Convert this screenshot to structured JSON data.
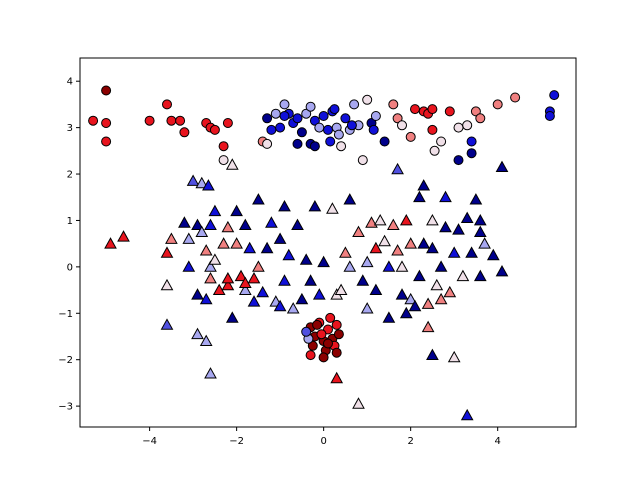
{
  "chart_data": {
    "type": "scatter",
    "title": "",
    "xlabel": "",
    "ylabel": "",
    "xlim": [
      -5.6,
      5.8
    ],
    "ylim": [
      -3.45,
      4.5
    ],
    "x_ticks": [
      -4,
      -2,
      0,
      2,
      4
    ],
    "y_ticks": [
      -3,
      -2,
      -1,
      0,
      1,
      2,
      3,
      4
    ],
    "grid": false,
    "legend": "none",
    "colors": {
      "dark_red": "#8b0000",
      "red": "#e8141e",
      "light_red": "#f08080",
      "pale": "#f0e0e8",
      "light_blue": "#a8a8f0",
      "mid_blue": "#5050e0",
      "blue": "#1010d8",
      "navy": "#00008b"
    },
    "series": [
      {
        "marker": "circle",
        "points": [
          [
            -5.3,
            3.15,
            "red"
          ],
          [
            -5.0,
            3.8,
            "dark_red"
          ],
          [
            -5.0,
            3.1,
            "red"
          ],
          [
            -5.0,
            2.7,
            "red"
          ],
          [
            -4.0,
            3.15,
            "red"
          ],
          [
            -3.6,
            3.5,
            "red"
          ],
          [
            -3.5,
            3.15,
            "red"
          ],
          [
            -3.3,
            3.15,
            "red"
          ],
          [
            -3.2,
            2.9,
            "red"
          ],
          [
            -2.7,
            3.1,
            "red"
          ],
          [
            -2.6,
            3.0,
            "red"
          ],
          [
            -2.5,
            2.95,
            "red"
          ],
          [
            -2.2,
            3.1,
            "red"
          ],
          [
            -2.3,
            2.6,
            "red"
          ],
          [
            -2.3,
            2.3,
            "pale"
          ],
          [
            -1.4,
            2.7,
            "light_red"
          ],
          [
            -1.3,
            2.65,
            "pale"
          ],
          [
            -1.3,
            3.2,
            "navy"
          ],
          [
            -1.2,
            2.95,
            "blue"
          ],
          [
            -1.1,
            3.3,
            "light_blue"
          ],
          [
            -1.0,
            3.0,
            "blue"
          ],
          [
            -0.9,
            3.5,
            "light_blue"
          ],
          [
            -0.8,
            3.3,
            "blue"
          ],
          [
            -0.7,
            3.1,
            "blue"
          ],
          [
            -0.6,
            3.2,
            "blue"
          ],
          [
            -0.5,
            2.9,
            "navy"
          ],
          [
            -0.4,
            3.3,
            "light_blue"
          ],
          [
            -0.3,
            3.45,
            "light_blue"
          ],
          [
            -0.2,
            3.15,
            "blue"
          ],
          [
            -0.1,
            3.0,
            "light_blue"
          ],
          [
            0.0,
            3.25,
            "blue"
          ],
          [
            0.1,
            2.95,
            "blue"
          ],
          [
            0.2,
            3.35,
            "blue"
          ],
          [
            0.3,
            3.0,
            "light_blue"
          ],
          [
            0.35,
            2.85,
            "light_blue"
          ],
          [
            0.4,
            2.6,
            "pale"
          ],
          [
            0.5,
            3.2,
            "blue"
          ],
          [
            0.6,
            2.95,
            "light_blue"
          ],
          [
            0.7,
            3.5,
            "light_blue"
          ],
          [
            0.8,
            3.05,
            "light_blue"
          ],
          [
            0.9,
            2.3,
            "pale"
          ],
          [
            1.0,
            3.6,
            "pale"
          ],
          [
            1.1,
            3.1,
            "navy"
          ],
          [
            1.2,
            3.25,
            "light_blue"
          ],
          [
            1.4,
            2.7,
            "navy"
          ],
          [
            1.6,
            3.5,
            "light_red"
          ],
          [
            1.7,
            3.2,
            "light_red"
          ],
          [
            1.8,
            3.05,
            "pale"
          ],
          [
            2.0,
            2.8,
            "light_red"
          ],
          [
            2.1,
            3.4,
            "red"
          ],
          [
            2.3,
            3.35,
            "red"
          ],
          [
            2.4,
            3.3,
            "red"
          ],
          [
            2.5,
            3.4,
            "red"
          ],
          [
            2.5,
            2.95,
            "red"
          ],
          [
            2.55,
            2.5,
            "pale"
          ],
          [
            2.7,
            2.7,
            "pale"
          ],
          [
            2.9,
            3.35,
            "red"
          ],
          [
            3.1,
            3.0,
            "pale"
          ],
          [
            3.1,
            2.3,
            "navy"
          ],
          [
            3.3,
            3.05,
            "pale"
          ],
          [
            3.4,
            2.7,
            "blue"
          ],
          [
            3.4,
            2.45,
            "navy"
          ],
          [
            3.5,
            3.35,
            "light_red"
          ],
          [
            3.6,
            3.2,
            "light_red"
          ],
          [
            4.0,
            3.5,
            "light_red"
          ],
          [
            4.4,
            3.65,
            "light_red"
          ],
          [
            5.2,
            3.35,
            "blue"
          ],
          [
            5.2,
            3.25,
            "blue"
          ],
          [
            5.3,
            3.7,
            "blue"
          ],
          [
            -0.9,
            3.25,
            "blue"
          ],
          [
            -0.6,
            2.65,
            "navy"
          ],
          [
            -0.3,
            2.65,
            "navy"
          ],
          [
            -0.2,
            2.6,
            "navy"
          ],
          [
            0.15,
            2.7,
            "blue"
          ],
          [
            0.25,
            3.4,
            "blue"
          ],
          [
            0.65,
            3.05,
            "blue"
          ],
          [
            1.15,
            2.95,
            "blue"
          ],
          [
            -0.3,
            -1.3,
            "dark_red"
          ],
          [
            -0.2,
            -1.5,
            "dark_red"
          ],
          [
            -0.1,
            -1.2,
            "red"
          ],
          [
            0.0,
            -1.6,
            "dark_red"
          ],
          [
            0.1,
            -1.35,
            "red"
          ],
          [
            0.2,
            -1.55,
            "dark_red"
          ],
          [
            0.3,
            -1.25,
            "red"
          ],
          [
            -0.25,
            -1.7,
            "dark_red"
          ],
          [
            0.05,
            -1.8,
            "dark_red"
          ],
          [
            0.25,
            -1.7,
            "red"
          ],
          [
            -0.35,
            -1.55,
            "light_blue"
          ],
          [
            -0.4,
            -1.4,
            "mid_blue"
          ],
          [
            -0.3,
            -1.9,
            "red"
          ],
          [
            0.15,
            -1.1,
            "red"
          ],
          [
            0.35,
            -1.45,
            "dark_red"
          ],
          [
            -0.15,
            -1.25,
            "dark_red"
          ],
          [
            0.0,
            -1.95,
            "dark_red"
          ],
          [
            0.3,
            -1.85,
            "dark_red"
          ],
          [
            -0.05,
            -1.45,
            "red"
          ],
          [
            0.1,
            -1.65,
            "dark_red"
          ]
        ]
      },
      {
        "marker": "triangle",
        "points": [
          [
            -4.9,
            0.5,
            "red"
          ],
          [
            -4.6,
            0.65,
            "red"
          ],
          [
            -3.6,
            0.3,
            "red"
          ],
          [
            -3.6,
            -0.4,
            "pale"
          ],
          [
            -3.6,
            -1.25,
            "mid_blue"
          ],
          [
            -3.5,
            0.6,
            "light_red"
          ],
          [
            -3.2,
            0.95,
            "navy"
          ],
          [
            -3.1,
            0.6,
            "light_blue"
          ],
          [
            -3.1,
            0.0,
            "blue"
          ],
          [
            -3.0,
            1.85,
            "mid_blue"
          ],
          [
            -2.9,
            0.9,
            "navy"
          ],
          [
            -2.9,
            -0.6,
            "navy"
          ],
          [
            -2.9,
            -1.45,
            "light_blue"
          ],
          [
            -2.8,
            1.8,
            "light_blue"
          ],
          [
            -2.8,
            0.75,
            "light_blue"
          ],
          [
            -2.7,
            0.35,
            "light_red"
          ],
          [
            -2.7,
            -0.7,
            "blue"
          ],
          [
            -2.7,
            -1.6,
            "light_blue"
          ],
          [
            -2.65,
            1.75,
            "blue"
          ],
          [
            -2.6,
            0.9,
            "blue"
          ],
          [
            -2.6,
            0.0,
            "light_blue"
          ],
          [
            -2.6,
            -0.25,
            "light_red"
          ],
          [
            -2.5,
            1.2,
            "blue"
          ],
          [
            -2.5,
            0.15,
            "pale"
          ],
          [
            -2.4,
            -0.5,
            "red"
          ],
          [
            -2.3,
            0.5,
            "light_red"
          ],
          [
            -2.2,
            0.85,
            "light_red"
          ],
          [
            -2.2,
            -0.4,
            "red"
          ],
          [
            -2.1,
            2.2,
            "pale"
          ],
          [
            -2.1,
            -1.1,
            "navy"
          ],
          [
            -2.0,
            1.2,
            "navy"
          ],
          [
            -2.0,
            0.5,
            "light_red"
          ],
          [
            -1.9,
            -0.2,
            "red"
          ],
          [
            -1.8,
            0.9,
            "navy"
          ],
          [
            -1.8,
            -0.5,
            "light_blue"
          ],
          [
            -1.7,
            0.4,
            "blue"
          ],
          [
            -1.6,
            -0.75,
            "blue"
          ],
          [
            -1.5,
            1.45,
            "navy"
          ],
          [
            -1.5,
            0.0,
            "light_red"
          ],
          [
            -1.4,
            -0.55,
            "blue"
          ],
          [
            -1.3,
            0.4,
            "navy"
          ],
          [
            -1.2,
            0.95,
            "blue"
          ],
          [
            -1.1,
            -0.75,
            "light_blue"
          ],
          [
            -1.0,
            0.6,
            "navy"
          ],
          [
            -1.0,
            -0.85,
            "blue"
          ],
          [
            -0.9,
            1.3,
            "navy"
          ],
          [
            -0.9,
            -0.3,
            "blue"
          ],
          [
            -0.8,
            0.25,
            "blue"
          ],
          [
            -0.7,
            -0.9,
            "light_blue"
          ],
          [
            -0.6,
            0.9,
            "navy"
          ],
          [
            -0.5,
            -0.7,
            "navy"
          ],
          [
            -0.4,
            0.15,
            "navy"
          ],
          [
            -0.3,
            -0.3,
            "navy"
          ],
          [
            -0.2,
            1.3,
            "navy"
          ],
          [
            -0.1,
            -0.6,
            "blue"
          ],
          [
            0.0,
            0.1,
            "navy"
          ],
          [
            0.2,
            1.25,
            "pale"
          ],
          [
            0.3,
            -0.6,
            "pale"
          ],
          [
            0.3,
            -2.4,
            "red"
          ],
          [
            0.4,
            -0.5,
            "pale"
          ],
          [
            0.5,
            0.3,
            "light_red"
          ],
          [
            0.6,
            0.0,
            "light_blue"
          ],
          [
            0.6,
            1.45,
            "navy"
          ],
          [
            0.8,
            0.75,
            "light_red"
          ],
          [
            0.8,
            -2.95,
            "pale"
          ],
          [
            0.9,
            -0.3,
            "navy"
          ],
          [
            1.0,
            0.1,
            "light_blue"
          ],
          [
            1.0,
            -0.9,
            "light_blue"
          ],
          [
            1.1,
            0.95,
            "light_red"
          ],
          [
            1.2,
            -0.5,
            "navy"
          ],
          [
            1.2,
            0.4,
            "red"
          ],
          [
            1.3,
            1.0,
            "pale"
          ],
          [
            1.4,
            0.55,
            "pale"
          ],
          [
            1.5,
            0.0,
            "blue"
          ],
          [
            1.5,
            -1.1,
            "navy"
          ],
          [
            1.6,
            0.9,
            "light_red"
          ],
          [
            1.7,
            0.35,
            "light_red"
          ],
          [
            1.7,
            2.1,
            "mid_blue"
          ],
          [
            1.8,
            0.0,
            "pale"
          ],
          [
            1.8,
            -0.6,
            "navy"
          ],
          [
            1.9,
            1.0,
            "red"
          ],
          [
            1.9,
            -1.0,
            "navy"
          ],
          [
            2.0,
            0.5,
            "light_red"
          ],
          [
            2.0,
            -0.7,
            "light_blue"
          ],
          [
            2.1,
            -0.85,
            "navy"
          ],
          [
            2.2,
            1.5,
            "navy"
          ],
          [
            2.2,
            -0.2,
            "navy"
          ],
          [
            2.3,
            1.75,
            "navy"
          ],
          [
            2.3,
            0.5,
            "navy"
          ],
          [
            2.4,
            -0.8,
            "light_red"
          ],
          [
            2.4,
            -1.3,
            "light_red"
          ],
          [
            2.5,
            1.0,
            "pale"
          ],
          [
            2.5,
            0.4,
            "navy"
          ],
          [
            2.5,
            -1.9,
            "navy"
          ],
          [
            2.6,
            -0.4,
            "pale"
          ],
          [
            2.7,
            -0.7,
            "light_red"
          ],
          [
            2.7,
            0.0,
            "navy"
          ],
          [
            2.8,
            1.5,
            "blue"
          ],
          [
            2.8,
            0.85,
            "navy"
          ],
          [
            2.9,
            -0.55,
            "light_red"
          ],
          [
            3.0,
            0.3,
            "blue"
          ],
          [
            3.0,
            -1.95,
            "pale"
          ],
          [
            3.1,
            0.8,
            "navy"
          ],
          [
            3.2,
            -0.2,
            "pale"
          ],
          [
            3.3,
            1.05,
            "navy"
          ],
          [
            3.3,
            -3.2,
            "blue"
          ],
          [
            3.4,
            0.3,
            "navy"
          ],
          [
            3.5,
            1.45,
            "navy"
          ],
          [
            3.6,
            0.75,
            "navy"
          ],
          [
            3.6,
            -0.2,
            "navy"
          ],
          [
            3.7,
            0.5,
            "light_blue"
          ],
          [
            3.9,
            0.25,
            "navy"
          ],
          [
            4.1,
            2.15,
            "navy"
          ],
          [
            4.1,
            -0.1,
            "navy"
          ],
          [
            3.6,
            1.0,
            "navy"
          ],
          [
            -2.6,
            -2.3,
            "light_blue"
          ],
          [
            -2.2,
            -0.25,
            "red"
          ],
          [
            -1.8,
            -0.35,
            "red"
          ],
          [
            -1.6,
            -0.25,
            "red"
          ]
        ]
      }
    ]
  }
}
